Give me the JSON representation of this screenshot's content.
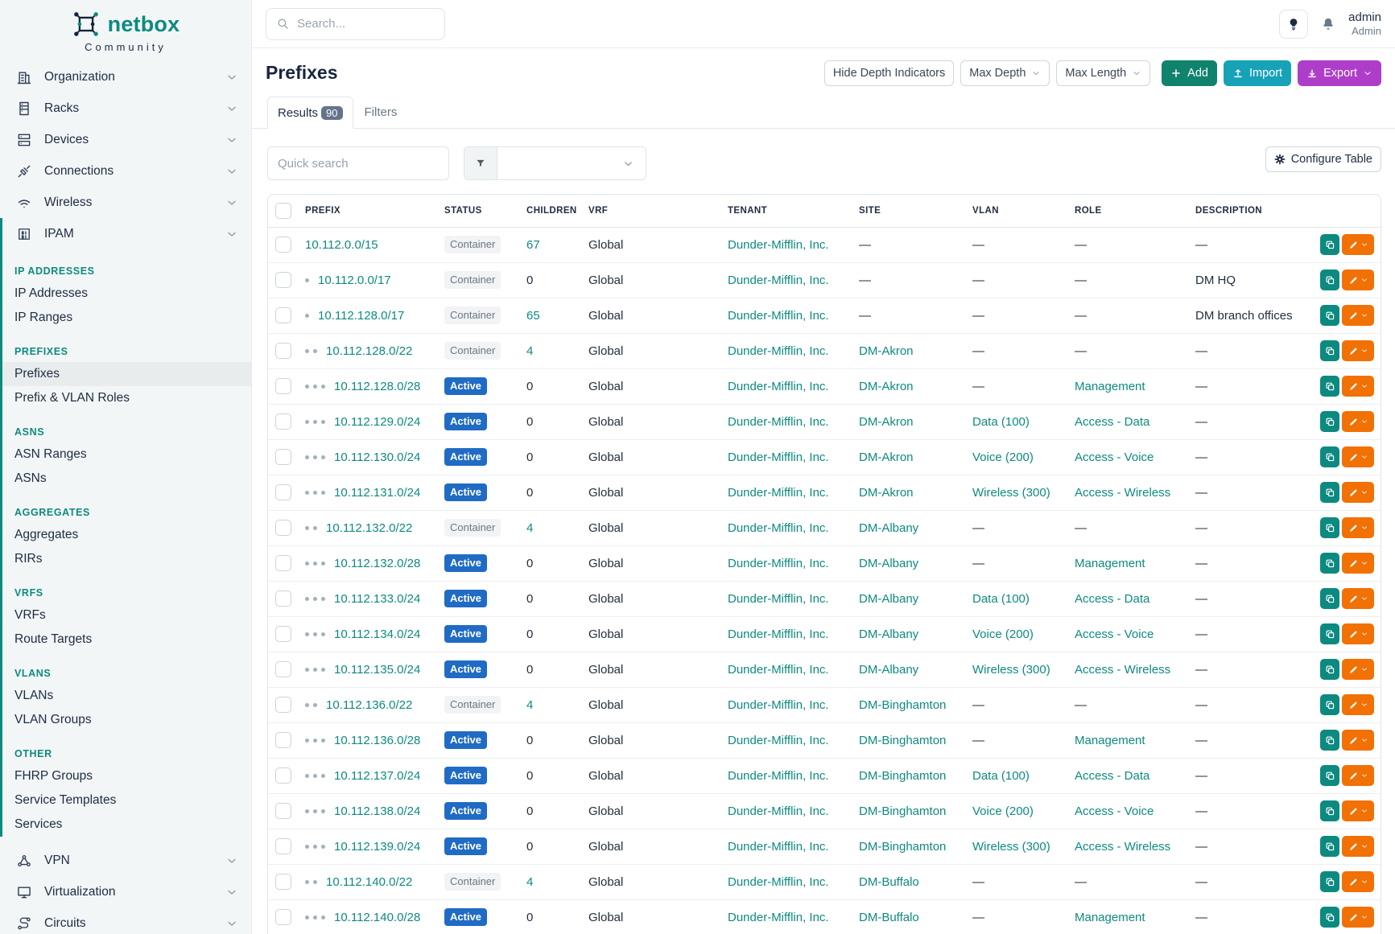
{
  "colors": {
    "accent": "#0d8a80",
    "badge-active": "#206bc4",
    "btn-add": "#10836e",
    "btn-import": "#17a2b8",
    "btn-export": "#ae3ec9",
    "btn-edit": "#f17105"
  },
  "sidebar": {
    "logo": {
      "brand": "netbox",
      "tagline": "Community"
    },
    "menu_top": [
      {
        "icon": "building",
        "label": "Organization"
      },
      {
        "icon": "rack",
        "label": "Racks"
      },
      {
        "icon": "devices",
        "label": "Devices"
      },
      {
        "icon": "plug",
        "label": "Connections"
      },
      {
        "icon": "wifi",
        "label": "Wireless"
      }
    ],
    "ipam": {
      "icon": "binary",
      "label": "IPAM",
      "sections": [
        {
          "heading": "IP ADDRESSES",
          "items": [
            {
              "label": "IP Addresses"
            },
            {
              "label": "IP Ranges"
            }
          ]
        },
        {
          "heading": "PREFIXES",
          "items": [
            {
              "label": "Prefixes",
              "active": true,
              "actions": true
            },
            {
              "label": "Prefix & VLAN Roles"
            }
          ]
        },
        {
          "heading": "ASNS",
          "items": [
            {
              "label": "ASN Ranges"
            },
            {
              "label": "ASNs"
            }
          ]
        },
        {
          "heading": "AGGREGATES",
          "items": [
            {
              "label": "Aggregates"
            },
            {
              "label": "RIRs"
            }
          ]
        },
        {
          "heading": "VRFS",
          "items": [
            {
              "label": "VRFs"
            },
            {
              "label": "Route Targets"
            }
          ]
        },
        {
          "heading": "VLANS",
          "items": [
            {
              "label": "VLANs"
            },
            {
              "label": "VLAN Groups"
            }
          ]
        },
        {
          "heading": "OTHER",
          "items": [
            {
              "label": "FHRP Groups"
            },
            {
              "label": "Service Templates"
            },
            {
              "label": "Services"
            }
          ]
        }
      ]
    },
    "menu_bottom": [
      {
        "icon": "vpn",
        "label": "VPN"
      },
      {
        "icon": "monitor",
        "label": "Virtualization"
      },
      {
        "icon": "circuits",
        "label": "Circuits"
      }
    ]
  },
  "topbar": {
    "search_placeholder": "Search...",
    "user": {
      "name": "admin",
      "role": "Admin"
    }
  },
  "page": {
    "title": "Prefixes",
    "buttons": {
      "hide_depth": "Hide Depth Indicators",
      "max_depth": "Max Depth",
      "max_length": "Max Length",
      "add": "Add",
      "import": "Import",
      "export": "Export"
    }
  },
  "tabs": {
    "results": "Results",
    "results_count": "90",
    "filters": "Filters"
  },
  "toolbar": {
    "quick_search_placeholder": "Quick search",
    "configure": "Configure Table"
  },
  "table": {
    "empty": "—",
    "columns": [
      "PREFIX",
      "STATUS",
      "CHILDREN",
      "VRF",
      "TENANT",
      "SITE",
      "VLAN",
      "ROLE",
      "DESCRIPTION"
    ],
    "rows": [
      {
        "depth": 0,
        "prefix": "10.112.0.0/15",
        "status": "Container",
        "children": "67",
        "children_link": true,
        "vrf": "Global",
        "tenant": "Dunder-Mifflin, Inc.",
        "site": "—",
        "vlan": "—",
        "role": "—",
        "description": "—"
      },
      {
        "depth": 1,
        "prefix": "10.112.0.0/17",
        "status": "Container",
        "children": "0",
        "children_link": false,
        "vrf": "Global",
        "tenant": "Dunder-Mifflin, Inc.",
        "site": "—",
        "vlan": "—",
        "role": "—",
        "description": "DM HQ"
      },
      {
        "depth": 1,
        "prefix": "10.112.128.0/17",
        "status": "Container",
        "children": "65",
        "children_link": true,
        "vrf": "Global",
        "tenant": "Dunder-Mifflin, Inc.",
        "site": "—",
        "vlan": "—",
        "role": "—",
        "description": "DM branch offices"
      },
      {
        "depth": 2,
        "prefix": "10.112.128.0/22",
        "status": "Container",
        "children": "4",
        "children_link": true,
        "vrf": "Global",
        "tenant": "Dunder-Mifflin, Inc.",
        "site": "DM-Akron",
        "vlan": "—",
        "role": "—",
        "description": "—"
      },
      {
        "depth": 3,
        "prefix": "10.112.128.0/28",
        "status": "Active",
        "children": "0",
        "children_link": false,
        "vrf": "Global",
        "tenant": "Dunder-Mifflin, Inc.",
        "site": "DM-Akron",
        "vlan": "—",
        "role": "Management",
        "description": "—"
      },
      {
        "depth": 3,
        "prefix": "10.112.129.0/24",
        "status": "Active",
        "children": "0",
        "children_link": false,
        "vrf": "Global",
        "tenant": "Dunder-Mifflin, Inc.",
        "site": "DM-Akron",
        "vlan": "Data (100)",
        "role": "Access - Data",
        "description": "—"
      },
      {
        "depth": 3,
        "prefix": "10.112.130.0/24",
        "status": "Active",
        "children": "0",
        "children_link": false,
        "vrf": "Global",
        "tenant": "Dunder-Mifflin, Inc.",
        "site": "DM-Akron",
        "vlan": "Voice (200)",
        "role": "Access - Voice",
        "description": "—"
      },
      {
        "depth": 3,
        "prefix": "10.112.131.0/24",
        "status": "Active",
        "children": "0",
        "children_link": false,
        "vrf": "Global",
        "tenant": "Dunder-Mifflin, Inc.",
        "site": "DM-Akron",
        "vlan": "Wireless (300)",
        "role": "Access - Wireless",
        "description": "—"
      },
      {
        "depth": 2,
        "prefix": "10.112.132.0/22",
        "status": "Container",
        "children": "4",
        "children_link": true,
        "vrf": "Global",
        "tenant": "Dunder-Mifflin, Inc.",
        "site": "DM-Albany",
        "vlan": "—",
        "role": "—",
        "description": "—"
      },
      {
        "depth": 3,
        "prefix": "10.112.132.0/28",
        "status": "Active",
        "children": "0",
        "children_link": false,
        "vrf": "Global",
        "tenant": "Dunder-Mifflin, Inc.",
        "site": "DM-Albany",
        "vlan": "—",
        "role": "Management",
        "description": "—"
      },
      {
        "depth": 3,
        "prefix": "10.112.133.0/24",
        "status": "Active",
        "children": "0",
        "children_link": false,
        "vrf": "Global",
        "tenant": "Dunder-Mifflin, Inc.",
        "site": "DM-Albany",
        "vlan": "Data (100)",
        "role": "Access - Data",
        "description": "—"
      },
      {
        "depth": 3,
        "prefix": "10.112.134.0/24",
        "status": "Active",
        "children": "0",
        "children_link": false,
        "vrf": "Global",
        "tenant": "Dunder-Mifflin, Inc.",
        "site": "DM-Albany",
        "vlan": "Voice (200)",
        "role": "Access - Voice",
        "description": "—"
      },
      {
        "depth": 3,
        "prefix": "10.112.135.0/24",
        "status": "Active",
        "children": "0",
        "children_link": false,
        "vrf": "Global",
        "tenant": "Dunder-Mifflin, Inc.",
        "site": "DM-Albany",
        "vlan": "Wireless (300)",
        "role": "Access - Wireless",
        "description": "—"
      },
      {
        "depth": 2,
        "prefix": "10.112.136.0/22",
        "status": "Container",
        "children": "4",
        "children_link": true,
        "vrf": "Global",
        "tenant": "Dunder-Mifflin, Inc.",
        "site": "DM-Binghamton",
        "vlan": "—",
        "role": "—",
        "description": "—"
      },
      {
        "depth": 3,
        "prefix": "10.112.136.0/28",
        "status": "Active",
        "children": "0",
        "children_link": false,
        "vrf": "Global",
        "tenant": "Dunder-Mifflin, Inc.",
        "site": "DM-Binghamton",
        "vlan": "—",
        "role": "Management",
        "description": "—"
      },
      {
        "depth": 3,
        "prefix": "10.112.137.0/24",
        "status": "Active",
        "children": "0",
        "children_link": false,
        "vrf": "Global",
        "tenant": "Dunder-Mifflin, Inc.",
        "site": "DM-Binghamton",
        "vlan": "Data (100)",
        "role": "Access - Data",
        "description": "—"
      },
      {
        "depth": 3,
        "prefix": "10.112.138.0/24",
        "status": "Active",
        "children": "0",
        "children_link": false,
        "vrf": "Global",
        "tenant": "Dunder-Mifflin, Inc.",
        "site": "DM-Binghamton",
        "vlan": "Voice (200)",
        "role": "Access - Voice",
        "description": "—"
      },
      {
        "depth": 3,
        "prefix": "10.112.139.0/24",
        "status": "Active",
        "children": "0",
        "children_link": false,
        "vrf": "Global",
        "tenant": "Dunder-Mifflin, Inc.",
        "site": "DM-Binghamton",
        "vlan": "Wireless (300)",
        "role": "Access - Wireless",
        "description": "—"
      },
      {
        "depth": 2,
        "prefix": "10.112.140.0/22",
        "status": "Container",
        "children": "4",
        "children_link": true,
        "vrf": "Global",
        "tenant": "Dunder-Mifflin, Inc.",
        "site": "DM-Buffalo",
        "vlan": "—",
        "role": "—",
        "description": "—"
      },
      {
        "depth": 3,
        "prefix": "10.112.140.0/28",
        "status": "Active",
        "children": "0",
        "children_link": false,
        "vrf": "Global",
        "tenant": "Dunder-Mifflin, Inc.",
        "site": "DM-Buffalo",
        "vlan": "—",
        "role": "Management",
        "description": "—"
      }
    ]
  }
}
